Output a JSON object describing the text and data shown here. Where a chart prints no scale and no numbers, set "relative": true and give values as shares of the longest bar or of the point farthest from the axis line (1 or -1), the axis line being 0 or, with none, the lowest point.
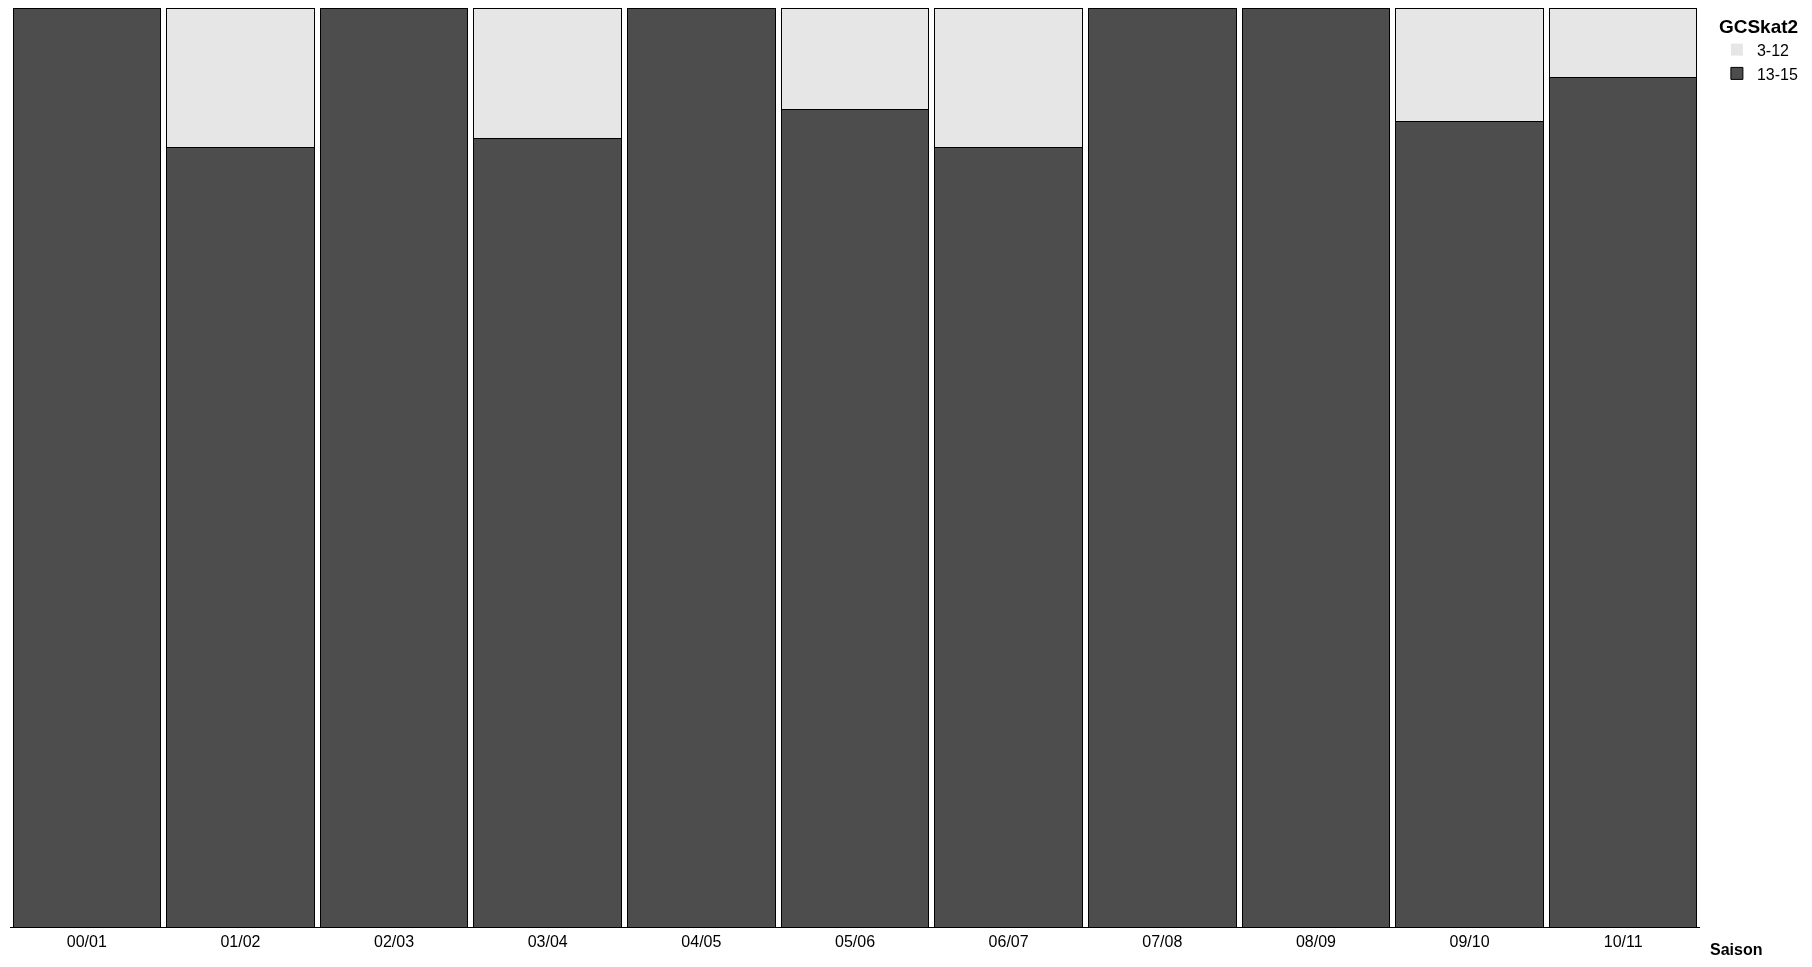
{
  "chart_data": {
    "type": "bar",
    "stacked": true,
    "relative": true,
    "xlabel": "Saison",
    "legend_title": "GCSkat2",
    "legend": "right",
    "categories": [
      "00/01",
      "01/02",
      "02/03",
      "03/04",
      "04/05",
      "05/06",
      "06/07",
      "07/08",
      "08/09",
      "09/10",
      "10/11"
    ],
    "series": [
      {
        "name": "13-15",
        "color": "#4d4d4d",
        "values": [
          1,
          0.848,
          1,
          0.858,
          1,
          0.89,
          0.848,
          1,
          1,
          0.876,
          0.924
        ]
      },
      {
        "name": "3-12",
        "color": "#e6e6e6",
        "values": [
          0,
          0.152,
          0,
          0.142,
          0,
          0.11,
          0.152,
          0,
          0,
          0.124,
          0.076
        ]
      }
    ]
  }
}
